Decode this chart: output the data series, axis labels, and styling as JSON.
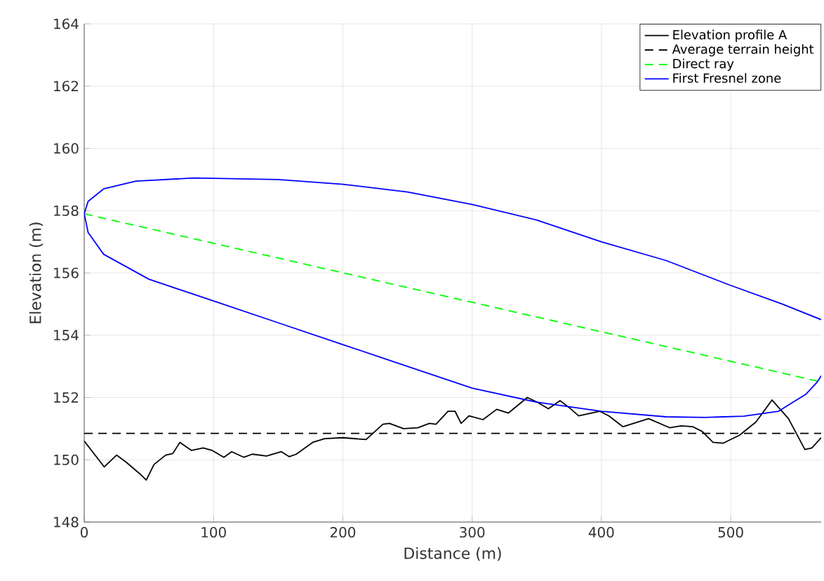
{
  "chart_data": {
    "type": "line",
    "xlabel": "Distance (m)",
    "ylabel": "Elevation (m)",
    "xlim": [
      0,
      570
    ],
    "ylim": [
      148,
      164
    ],
    "xticks": [
      0,
      100,
      200,
      300,
      400,
      500
    ],
    "yticks": [
      148,
      150,
      152,
      154,
      156,
      158,
      160,
      162,
      164
    ],
    "grid": true,
    "legend": "top right",
    "series": [
      {
        "name": "Elevation profile A",
        "color": "#000000",
        "line_style": "solid",
        "x": [
          0,
          15.5,
          25,
          32.5,
          43,
          48,
          54,
          63,
          68.5,
          74,
          83,
          92,
          99,
          108,
          114,
          123.5,
          130,
          141,
          152.5,
          158.5,
          164,
          176.7,
          186,
          200,
          218,
          231,
          236,
          247,
          258,
          267,
          272,
          281.4,
          286.8,
          291.5,
          297.6,
          308.4,
          319,
          328,
          342.7,
          350,
          359,
          368,
          375,
          382.4,
          398.6,
          405.8,
          416.7,
          436.5,
          452.7,
          461.7,
          470.8,
          478,
          486.3,
          494,
          506.8,
          519.5,
          532,
          544.7,
          557.4,
          562.8,
          570
        ],
        "values": [
          150.6,
          149.77,
          150.15,
          149.92,
          149.55,
          149.35,
          149.85,
          150.15,
          150.2,
          150.56,
          150.3,
          150.38,
          150.3,
          150.08,
          150.26,
          150.08,
          150.18,
          150.12,
          150.26,
          150.1,
          150.18,
          150.56,
          150.68,
          150.71,
          150.65,
          151.14,
          151.17,
          151.0,
          151.03,
          151.17,
          151.14,
          151.56,
          151.56,
          151.17,
          151.41,
          151.29,
          151.62,
          151.5,
          152.0,
          151.86,
          151.64,
          151.9,
          151.68,
          151.41,
          151.56,
          151.41,
          151.06,
          151.32,
          151.03,
          151.09,
          151.06,
          150.91,
          150.56,
          150.53,
          150.79,
          151.21,
          151.92,
          151.32,
          150.33,
          150.38,
          150.71
        ]
      },
      {
        "name": "Average terrain height",
        "color": "#000000",
        "line_style": "dashed",
        "x": [
          0,
          570
        ],
        "values": [
          150.85,
          150.85
        ]
      },
      {
        "name": "Direct ray",
        "color": "#00ff00",
        "line_style": "dashed",
        "x": [
          0,
          570
        ],
        "values": [
          157.9,
          152.5
        ]
      },
      {
        "name": "First Fresnel zone",
        "color": "#0000ff",
        "line_style": "solid",
        "x": [
          570,
          540,
          500,
          450,
          400,
          350,
          300,
          250,
          200,
          150,
          85,
          40,
          15,
          3,
          0,
          3,
          15,
          50,
          100,
          150,
          200,
          250,
          300,
          350,
          400,
          450,
          480,
          510,
          537,
          558,
          567,
          570
        ],
        "values": [
          154.5,
          155.0,
          155.6,
          156.4,
          157.0,
          157.7,
          158.2,
          158.6,
          158.85,
          159.0,
          159.05,
          158.95,
          158.7,
          158.3,
          157.9,
          157.3,
          156.6,
          155.8,
          155.1,
          154.4,
          153.7,
          153.0,
          152.3,
          151.85,
          151.56,
          151.38,
          151.36,
          151.4,
          151.56,
          152.1,
          152.5,
          152.7
        ]
      }
    ]
  }
}
